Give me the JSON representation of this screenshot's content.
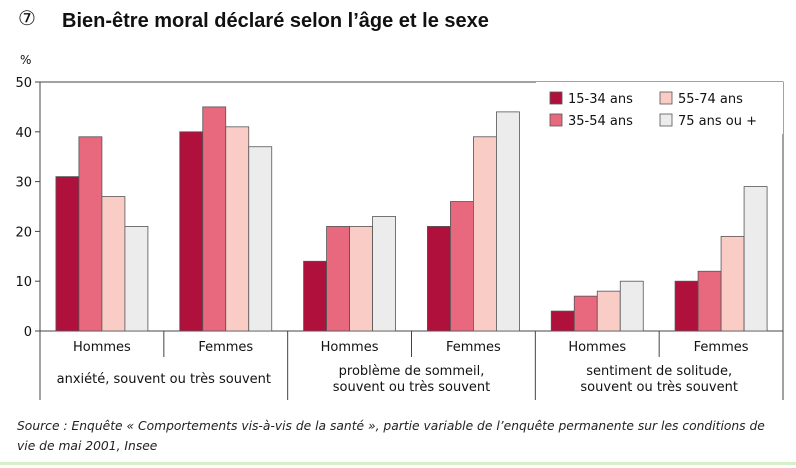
{
  "figure_number": "⑦",
  "title": "Bien-être moral déclaré selon l’âge et le sexe",
  "source": "Source : Enquête « Comportements vis-à-vis de la santé », partie variable de l’enquête permanente sur les conditions de vie de mai 2001, Insee",
  "chart_data": {
    "type": "bar",
    "ylabel": "%",
    "ylim": [
      0,
      50
    ],
    "yticks": [
      0,
      10,
      20,
      30,
      40,
      50
    ],
    "grid": false,
    "legend_position": "top-right",
    "groups": [
      {
        "label": "anxiété, souvent ou très souvent",
        "label_lines": [
          "anxiété, souvent ou très souvent"
        ],
        "subcategories": [
          "Hommes",
          "Femmes"
        ]
      },
      {
        "label": "problème de sommeil, souvent ou très souvent",
        "label_lines": [
          "problème de sommeil,",
          "souvent ou très souvent"
        ],
        "subcategories": [
          "Hommes",
          "Femmes"
        ]
      },
      {
        "label": "sentiment de solitude, souvent ou très souvent",
        "label_lines": [
          "sentiment de solitude,",
          "souvent ou très souvent"
        ],
        "subcategories": [
          "Hommes",
          "Femmes"
        ]
      }
    ],
    "categories": [
      "Hommes",
      "Femmes",
      "Hommes",
      "Femmes",
      "Hommes",
      "Femmes"
    ],
    "series": [
      {
        "name": "15-34 ans",
        "color": "#b0103c",
        "values": [
          31,
          40,
          14,
          21,
          4,
          10
        ]
      },
      {
        "name": "35-54 ans",
        "color": "#e8687e",
        "values": [
          39,
          45,
          21,
          26,
          7,
          12
        ]
      },
      {
        "name": "55-74 ans",
        "color": "#f9cdc6",
        "values": [
          27,
          41,
          21,
          39,
          8,
          19
        ]
      },
      {
        "name": "75 ans ou +",
        "color": "#ececec",
        "values": [
          21,
          37,
          23,
          44,
          10,
          29
        ]
      }
    ]
  }
}
